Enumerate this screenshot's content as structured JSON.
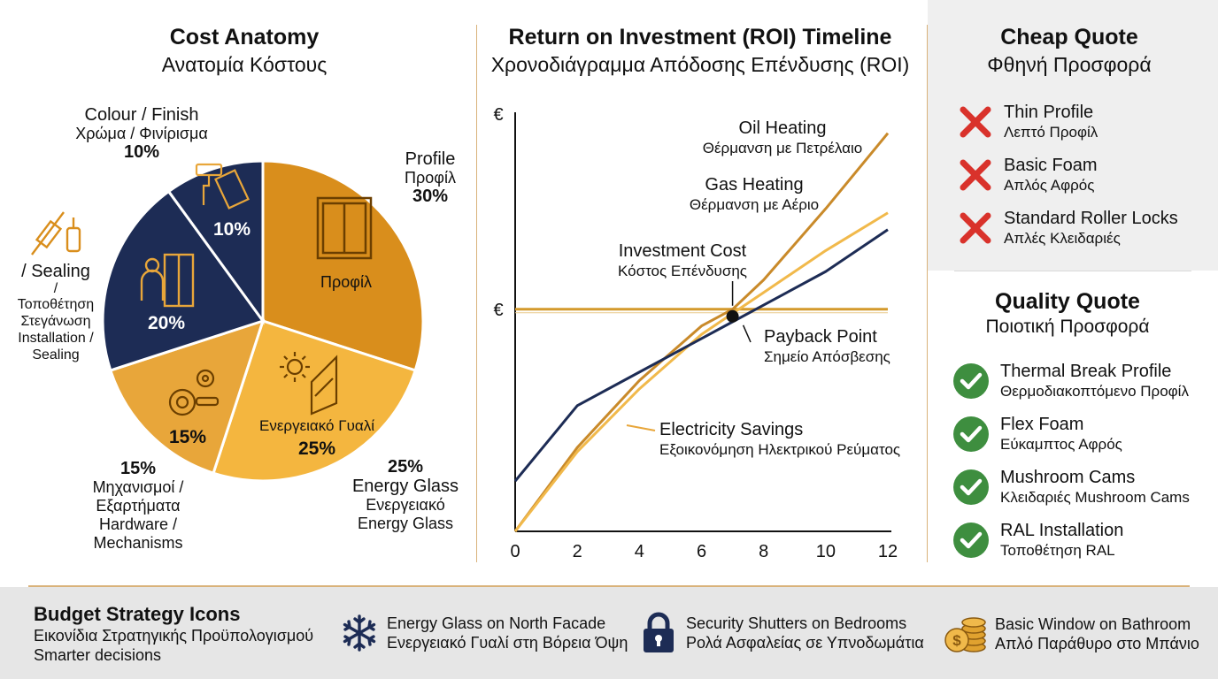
{
  "pie": {
    "title": "Cost Anatomy",
    "subtitle": "Ανατομία Κόστους",
    "slices": [
      {
        "key": "profile",
        "pct": 30,
        "color": "#d98e1c",
        "inner_label": "Προφίλ",
        "outer": [
          "Profile",
          "Προφίλ",
          "30%"
        ]
      },
      {
        "key": "glass",
        "pct": 25,
        "color": "#f4b63f",
        "inner_label": "Ενεργειακό Γυαλί",
        "inner_pct": "25%",
        "outer": [
          "25%",
          "Energy Glass",
          "Ενεργειακό",
          "Energy Glass"
        ]
      },
      {
        "key": "hardware",
        "pct": 15,
        "color": "#e8a63a",
        "inner_pct": "15%",
        "outer": [
          "15%",
          "Μηχανισμοί /",
          "Εξαρτήματα",
          "Hardware /",
          "Mechanisms"
        ]
      },
      {
        "key": "installation",
        "pct": 20,
        "color": "#1d2c55",
        "inner_pct": "20%",
        "outer": [
          "/ Sealing",
          "/",
          "Τοποθέτηση",
          "Στεγάνωση",
          "Installation /",
          "Sealing"
        ]
      },
      {
        "key": "colour",
        "pct": 10,
        "color": "#1d2c55",
        "inner_pct": "10%",
        "outer": [
          "Colour / Finish",
          "Χρώμα / Φινίρισμα",
          "10%"
        ]
      }
    ]
  },
  "chart_data": {
    "type": "line",
    "title": "Return on Investment (ROI) Timeline",
    "subtitle": "Χρονοδιάγραμμα Απόδοσης Επένδυσης (ROI)",
    "x_ticks": [
      0,
      2,
      4,
      6,
      8,
      10,
      12
    ],
    "xlim": [
      0,
      12
    ],
    "ylim": [
      0,
      100
    ],
    "y_markers": [
      "€",
      "€"
    ],
    "investment_level": 53,
    "series": [
      {
        "name": "Oil Heating",
        "name_el": "Θέρμανση με Πετρέλαιο",
        "color": "#c98a2a",
        "x": [
          0,
          2,
          4,
          6,
          7,
          8,
          10,
          12
        ],
        "y": [
          0,
          20,
          36,
          49,
          53,
          60,
          77,
          95
        ]
      },
      {
        "name": "Gas Heating",
        "name_el": "Θέρμανση με Αέριο",
        "color": "#f1b94b",
        "x": [
          0,
          2,
          4,
          6,
          7,
          8,
          10,
          12
        ],
        "y": [
          0,
          19,
          34,
          47,
          52,
          57,
          67,
          76
        ]
      },
      {
        "name": "Electricity Savings",
        "name_el": "Εξοικονόμηση Ηλεκτρικού Ρεύματος",
        "color": "#1d2c55",
        "x": [
          0,
          2,
          4,
          6,
          7,
          8,
          10,
          12
        ],
        "y": [
          12,
          30,
          38,
          46,
          50,
          54,
          62,
          72
        ]
      }
    ],
    "annotations": {
      "investment": [
        "Investment Cost",
        "Κόστος Επένδυσης"
      ],
      "payback": [
        "Payback Point",
        "Σημείο Απόσβεσης"
      ],
      "payback_x": 7
    }
  },
  "cheap": {
    "title": "Cheap Quote",
    "subtitle": "Φθηνή Προσφορά",
    "items": [
      {
        "en": "Thin Profile",
        "el": "Λεπτό Προφίλ"
      },
      {
        "en": "Basic Foam",
        "el": "Απλός Αφρός"
      },
      {
        "en": "Standard Roller Locks",
        "el": "Απλές Κλειδαριές"
      }
    ]
  },
  "quality": {
    "title": "Quality Quote",
    "subtitle": "Ποιοτική Προσφορά",
    "items": [
      {
        "en": "Thermal Break Profile",
        "el": "Θερμοδιακοπτόμενο Προφίλ"
      },
      {
        "en": "Flex Foam",
        "el": "Εύκαμπτος Αφρός"
      },
      {
        "en": "Mushroom Cams",
        "el": "Κλειδαριές Mushroom Cams"
      },
      {
        "en": "RAL Installation",
        "el": "Τοποθέτηση RAL"
      }
    ]
  },
  "footer": {
    "title": "Budget Strategy Icons",
    "subtitle": "Εικονίδια Στρατηγικής Προϋπολογισμού",
    "tagline": "Smarter decisions",
    "items": [
      {
        "icon": "snowflake-icon",
        "en": "Energy Glass on North Facade",
        "el": "Ενεργειακό Γυαλί στη Βόρεια Όψη"
      },
      {
        "icon": "padlock-icon",
        "en": "Security Shutters on Bedrooms",
        "el": "Ρολά Ασφαλείας σε Υπνοδωμάτια"
      },
      {
        "icon": "coins-icon",
        "en": "Basic Window on Bathroom",
        "el": "Απλό Παράθυρο στο Μπάνιο"
      }
    ]
  },
  "colors": {
    "navy": "#1d2c55",
    "orange": "#d98e1c",
    "gold": "#f4b63f",
    "red": "#d9322b",
    "green": "#3e8e3f",
    "divider": "#d9b27a"
  }
}
